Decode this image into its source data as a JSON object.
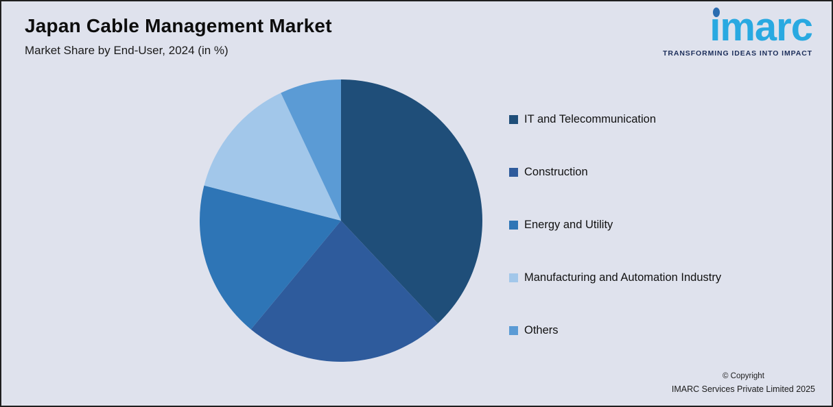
{
  "header": {
    "title": "Japan Cable Management Market",
    "subtitle": "Market Share by End-User, 2024 (in %)"
  },
  "logo": {
    "wordmark": "ımarc",
    "tagline": "TRANSFORMING IDEAS INTO IMPACT",
    "wordmark_color": "#29a9e1",
    "dot_color": "#2a6cb0",
    "tagline_color": "#1c2e5a"
  },
  "footer": {
    "copyright_line1": "© Copyright",
    "copyright_line2": "IMARC Services Private Limited 2025"
  },
  "chart_data": {
    "type": "pie",
    "title": "Japan Cable Management Market",
    "subtitle": "Market Share by End-User, 2024 (in %)",
    "unit": "%",
    "categories": [
      "IT and Telecommunication",
      "Construction",
      "Energy and Utility",
      "Manufacturing and Automation Industry",
      "Others"
    ],
    "values": [
      38,
      23,
      18,
      14,
      7
    ],
    "colors": [
      "#1f4e79",
      "#2e5b9c",
      "#2e75b6",
      "#a2c7ea",
      "#5b9bd5"
    ],
    "start_angle": 0,
    "direction": "clockwise",
    "legend_position": "right",
    "background_color": "#dfe2ed"
  }
}
